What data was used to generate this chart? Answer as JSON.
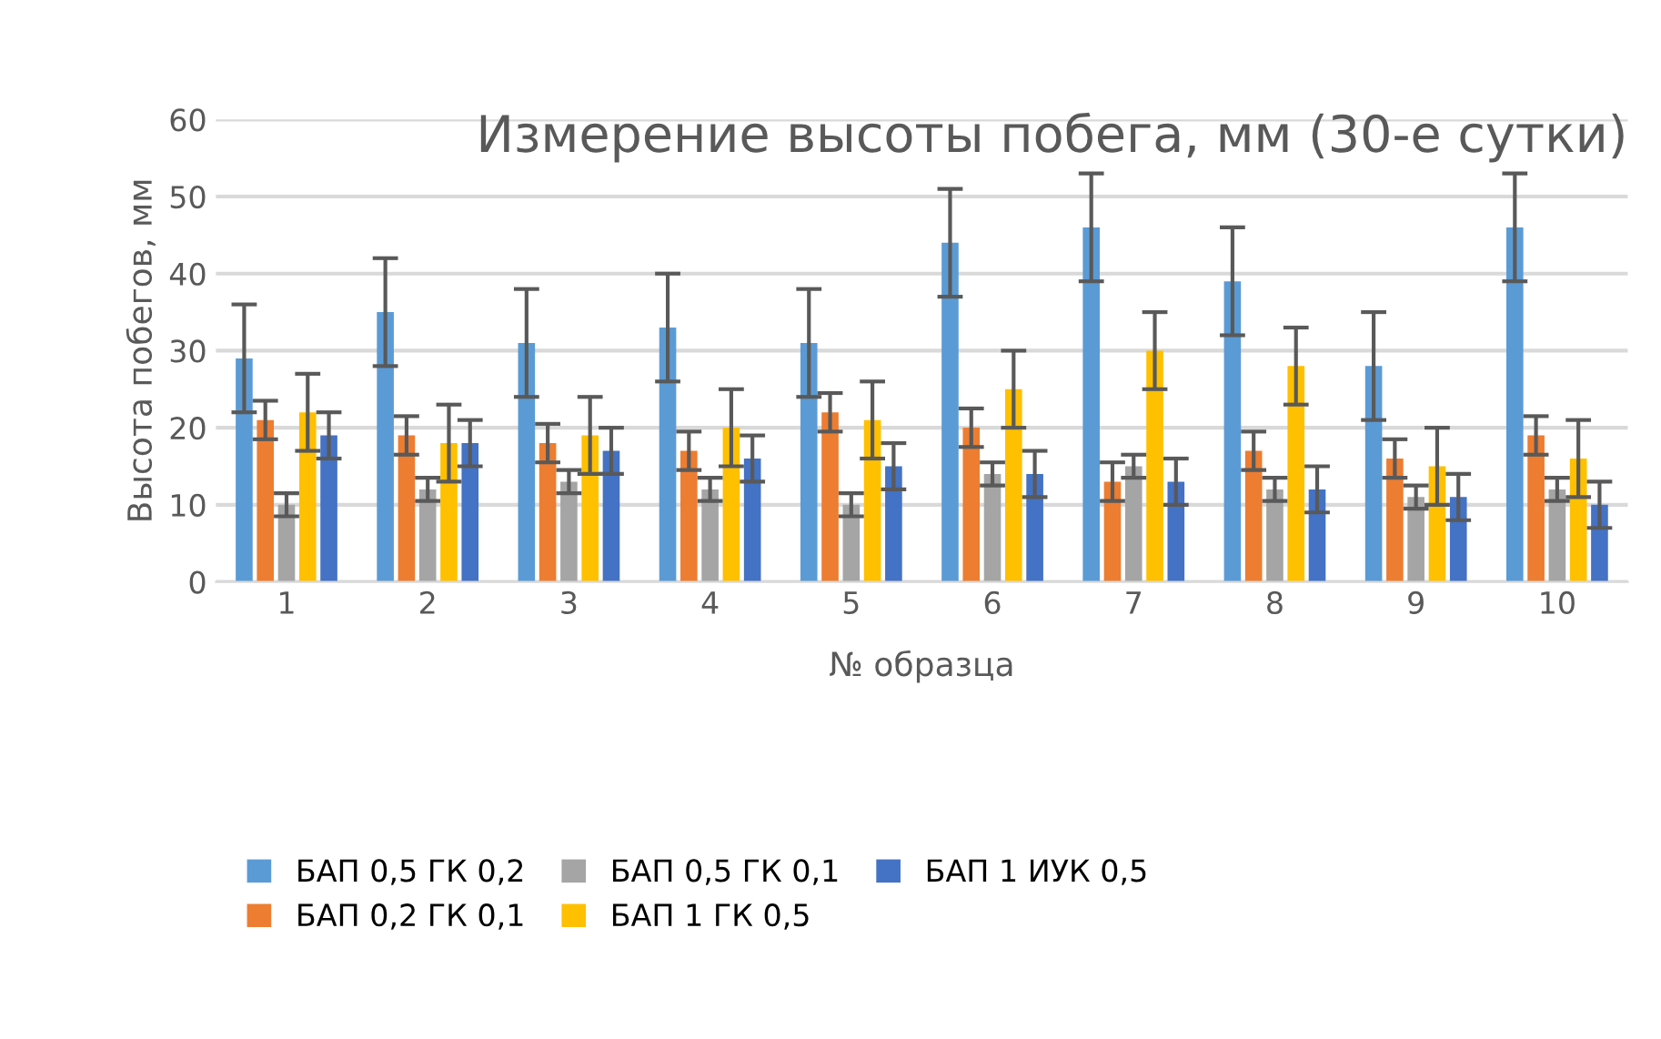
{
  "chart_data": {
    "type": "bar",
    "title": "Измерение высоты побега, мм (30-е сутки)",
    "xlabel": "№ образца",
    "ylabel": "Высота побегов, мм",
    "categories": [
      "1",
      "2",
      "3",
      "4",
      "5",
      "6",
      "7",
      "8",
      "9",
      "10"
    ],
    "series": [
      {
        "name": "БАП 0,5 ГК 0,2",
        "color": "#5b9bd5",
        "values": [
          29,
          35,
          31,
          33,
          31,
          44,
          46,
          39,
          28,
          46
        ],
        "errors": [
          7,
          7,
          7,
          7,
          7,
          7,
          7,
          7,
          7,
          7
        ]
      },
      {
        "name": "БАП 0,2 ГК 0,1",
        "color": "#ed7d31",
        "values": [
          21,
          19,
          18,
          17,
          22,
          20,
          13,
          17,
          16,
          19
        ],
        "errors": [
          2.5,
          2.5,
          2.5,
          2.5,
          2.5,
          2.5,
          2.5,
          2.5,
          2.5,
          2.5
        ]
      },
      {
        "name": "БАП 0,5 ГК 0,1",
        "color": "#a5a5a5",
        "values": [
          10,
          12,
          13,
          12,
          10,
          14,
          15,
          12,
          11,
          12
        ],
        "errors": [
          1.5,
          1.5,
          1.5,
          1.5,
          1.5,
          1.5,
          1.5,
          1.5,
          1.5,
          1.5
        ]
      },
      {
        "name": "БАП 1 ГК 0,5",
        "color": "#ffc000",
        "values": [
          22,
          18,
          19,
          20,
          21,
          25,
          30,
          28,
          15,
          16
        ],
        "errors": [
          5,
          5,
          5,
          5,
          5,
          5,
          5,
          5,
          5,
          5
        ]
      },
      {
        "name": "БАП 1 ИУК 0,5",
        "color": "#4472c4",
        "values": [
          19,
          18,
          17,
          16,
          15,
          14,
          13,
          12,
          11,
          10
        ],
        "errors": [
          3,
          3,
          3,
          3,
          3,
          3,
          3,
          3,
          3,
          3
        ]
      }
    ],
    "ylim": [
      0,
      60
    ],
    "yticks": [
      0,
      10,
      20,
      30,
      40,
      50,
      60
    ],
    "grid": "y",
    "legend": "bottom"
  }
}
